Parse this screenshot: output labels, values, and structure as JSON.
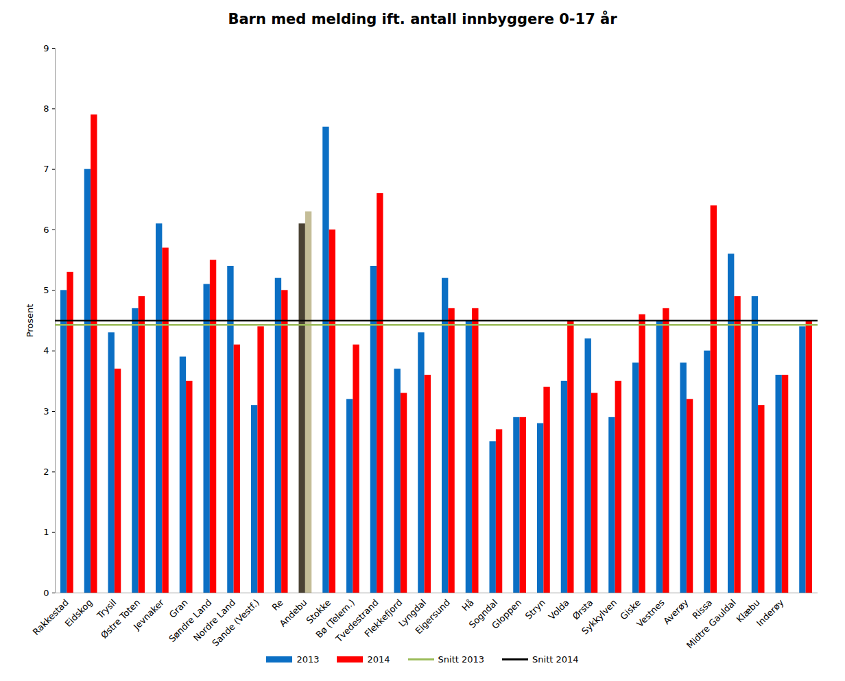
{
  "chart_data": {
    "type": "bar",
    "title": "Barn med melding ift. antall innbyggere 0-17 år",
    "y_label": "Prosent",
    "categories": [
      "Rakkestad",
      "Eidskog",
      "Trysil",
      "Østre Toten",
      "Jevnaker",
      "Gran",
      "Søndre Land",
      "Nordre Land",
      "Sande (Vestf.)",
      "Re",
      "Andebu",
      "Stokke",
      "Bø (Telem.)",
      "Tvedestrand",
      "Flekkefjord",
      "Lyngdal",
      "Eigersund",
      "Hå",
      "Sogndal",
      "Gloppen",
      "Stryn",
      "Volda",
      "Ørsta",
      "Sykkylven",
      "Giske",
      "Vestnes",
      "Averøy",
      "Rissa",
      "Midtre Gauldal",
      "Klæbu",
      "Inderøy",
      null
    ],
    "series": [
      {
        "name": "2013",
        "type": "bar",
        "color": "#0b6fc4",
        "colors": [
          "#0b6fc4",
          "#0b6fc4",
          "#0b6fc4",
          "#0b6fc4",
          "#0b6fc4",
          "#0b6fc4",
          "#0b6fc4",
          "#0b6fc4",
          "#0b6fc4",
          "#0b6fc4",
          "#4a4233",
          "#0b6fc4",
          "#0b6fc4",
          "#0b6fc4",
          "#0b6fc4",
          "#0b6fc4",
          "#0b6fc4",
          "#0b6fc4",
          "#0b6fc4",
          "#0b6fc4",
          "#0b6fc4",
          "#0b6fc4",
          "#0b6fc4",
          "#0b6fc4",
          "#0b6fc4",
          "#0b6fc4",
          "#0b6fc4",
          "#0b6fc4",
          "#0b6fc4",
          "#0b6fc4",
          "#0b6fc4",
          "#0b6fc4"
        ],
        "values": [
          5.0,
          7.0,
          4.3,
          4.7,
          6.1,
          3.9,
          5.1,
          5.4,
          3.1,
          5.2,
          6.1,
          7.7,
          3.2,
          5.4,
          3.7,
          4.3,
          5.2,
          4.5,
          2.5,
          2.9,
          2.8,
          3.5,
          4.2,
          2.9,
          3.8,
          4.5,
          3.8,
          4.0,
          5.6,
          4.9,
          3.6,
          4.4
        ]
      },
      {
        "name": "2014",
        "type": "bar",
        "color": "#ff0000",
        "colors": [
          "#ff0000",
          "#ff0000",
          "#ff0000",
          "#ff0000",
          "#ff0000",
          "#ff0000",
          "#ff0000",
          "#ff0000",
          "#ff0000",
          "#ff0000",
          "#c4bd97",
          "#ff0000",
          "#ff0000",
          "#ff0000",
          "#ff0000",
          "#ff0000",
          "#ff0000",
          "#ff0000",
          "#ff0000",
          "#ff0000",
          "#ff0000",
          "#ff0000",
          "#ff0000",
          "#ff0000",
          "#ff0000",
          "#ff0000",
          "#ff0000",
          "#ff0000",
          "#ff0000",
          "#ff0000",
          "#ff0000",
          "#ff0000"
        ],
        "values": [
          5.3,
          7.9,
          3.7,
          4.9,
          5.7,
          3.5,
          5.5,
          4.1,
          4.4,
          5.0,
          6.3,
          6.0,
          4.1,
          6.6,
          3.3,
          3.6,
          4.7,
          4.7,
          2.7,
          2.9,
          3.4,
          4.5,
          3.3,
          3.5,
          4.6,
          4.7,
          3.2,
          6.4,
          4.9,
          3.1,
          3.6,
          4.5
        ]
      },
      {
        "name": "Snitt 2013",
        "type": "rule",
        "color": "#9bbb59",
        "value": 4.43
      },
      {
        "name": "Snitt 2014",
        "type": "rule",
        "color": "#000000",
        "value": 4.5
      }
    ],
    "ylim": [
      0,
      9
    ],
    "yticks": [
      0,
      1,
      2,
      3,
      4,
      5,
      6,
      7,
      8,
      9
    ],
    "grid": false,
    "legend": "bottom"
  }
}
